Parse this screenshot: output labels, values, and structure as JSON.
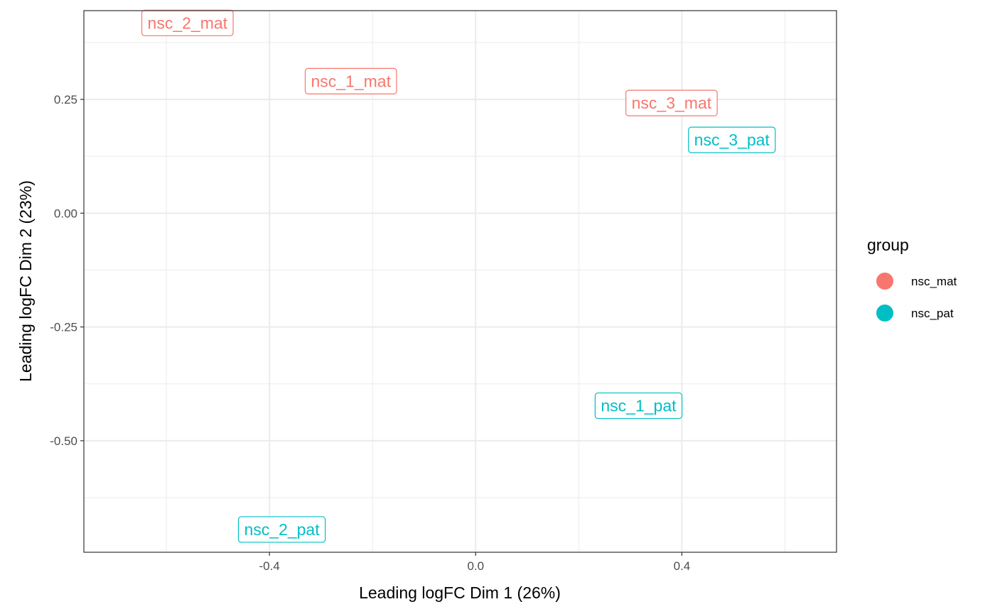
{
  "chart_data": {
    "type": "scatter",
    "title": "",
    "xlabel": "Leading logFC Dim 1 (26%)",
    "ylabel": "Leading logFC Dim 2 (23%)",
    "xlim": [
      -0.76,
      0.7
    ],
    "ylim": [
      -0.745,
      0.445
    ],
    "x_ticks": [
      -0.4,
      0.0,
      0.4
    ],
    "x_tick_labels": [
      "-0.4",
      "0.0",
      "0.4"
    ],
    "y_ticks": [
      0.25,
      0.0,
      -0.25,
      -0.5
    ],
    "y_tick_labels": [
      "0.25",
      "0.00",
      "-0.25",
      "-0.50"
    ],
    "grid": true,
    "legend": {
      "title": "group",
      "placement": "right",
      "entries": [
        {
          "name": "nsc_mat",
          "color": "#F8766D"
        },
        {
          "name": "nsc_pat",
          "color": "#00BFC4"
        }
      ]
    },
    "series": [
      {
        "name": "nsc_mat",
        "color": "#F8766D",
        "points": [
          {
            "label": "nsc_2_mat",
            "x": -0.559,
            "y": 0.418
          },
          {
            "label": "nsc_1_mat",
            "x": -0.242,
            "y": 0.29
          },
          {
            "label": "nsc_3_mat",
            "x": 0.38,
            "y": 0.242
          }
        ]
      },
      {
        "name": "nsc_pat",
        "color": "#00BFC4",
        "points": [
          {
            "label": "nsc_3_pat",
            "x": 0.497,
            "y": 0.161
          },
          {
            "label": "nsc_1_pat",
            "x": 0.316,
            "y": -0.423
          },
          {
            "label": "nsc_2_pat",
            "x": -0.376,
            "y": -0.695
          }
        ]
      }
    ]
  }
}
